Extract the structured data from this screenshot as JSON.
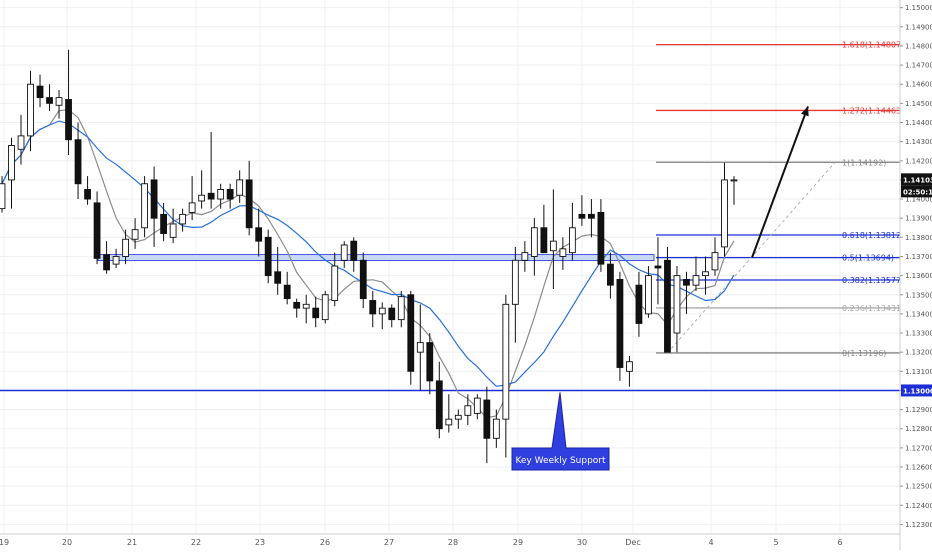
{
  "chart_data": {
    "type": "candlestick",
    "x_ticks": [
      "19",
      "20",
      "21",
      "22",
      "23",
      "26",
      "27",
      "28",
      "29",
      "30",
      "Dec",
      "4",
      "5",
      "6"
    ],
    "y_ticks": [
      "1.12300",
      "1.12400",
      "1.12500",
      "1.12600",
      "1.12700",
      "1.12800",
      "1.12900",
      "1.13000",
      "1.13100",
      "1.13200",
      "1.13300",
      "1.13400",
      "1.13500",
      "1.13600",
      "1.13700",
      "1.13800",
      "1.13900",
      "1.14000",
      "1.14100",
      "1.14200",
      "1.14300",
      "1.14400",
      "1.14500",
      "1.14600",
      "1.14700",
      "1.14800",
      "1.14900",
      "1.15000"
    ],
    "ylim": [
      1.1225,
      1.1504
    ],
    "price_label": "1.14103",
    "countdown_label": "02:50:19",
    "support_label": "1.13000",
    "support_level": 1.13,
    "zone_level": 1.13694,
    "fib_levels": [
      {
        "label": "1.618(1.14807)",
        "value": 1.14807,
        "color": "#e53935"
      },
      {
        "label": "1.272(1.14463)",
        "value": 1.14463,
        "color": "#e53935"
      },
      {
        "label": "1(1.14192)",
        "value": 1.14192,
        "color": "#888888"
      },
      {
        "label": "0.618(1.13812)",
        "value": 1.13812,
        "color": "#1e2fd6"
      },
      {
        "label": "0.5(1.13694)",
        "value": 1.13694,
        "color": "#1e2fd6"
      },
      {
        "label": "0.382(1.13577)",
        "value": 1.13577,
        "color": "#1e2fd6"
      },
      {
        "label": "0.236(1.13431)",
        "value": 1.13431,
        "color": "#aaaaaa"
      },
      {
        "label": "0(1.13196)",
        "value": 1.13196,
        "color": "#888888"
      }
    ],
    "annotation": "Key Weekly Support",
    "candles": [
      {
        "o": 1.1395,
        "h": 1.1412,
        "l": 1.1393,
        "c": 1.1408
      },
      {
        "o": 1.141,
        "h": 1.1432,
        "l": 1.1395,
        "c": 1.1428
      },
      {
        "o": 1.1426,
        "h": 1.1444,
        "l": 1.1418,
        "c": 1.1433
      },
      {
        "o": 1.1433,
        "h": 1.1467,
        "l": 1.1425,
        "c": 1.146
      },
      {
        "o": 1.1459,
        "h": 1.1465,
        "l": 1.1448,
        "c": 1.1453
      },
      {
        "o": 1.1453,
        "h": 1.146,
        "l": 1.1446,
        "c": 1.145
      },
      {
        "o": 1.1449,
        "h": 1.1457,
        "l": 1.1442,
        "c": 1.1453
      },
      {
        "o": 1.1452,
        "h": 1.1478,
        "l": 1.1423,
        "c": 1.1431
      },
      {
        "o": 1.1431,
        "h": 1.144,
        "l": 1.14,
        "c": 1.1408
      },
      {
        "o": 1.1405,
        "h": 1.1412,
        "l": 1.1397,
        "c": 1.14
      },
      {
        "o": 1.1398,
        "h": 1.1404,
        "l": 1.1366,
        "c": 1.1369
      },
      {
        "o": 1.1371,
        "h": 1.1378,
        "l": 1.1361,
        "c": 1.1363
      },
      {
        "o": 1.1366,
        "h": 1.1374,
        "l": 1.1364,
        "c": 1.137
      },
      {
        "o": 1.137,
        "h": 1.1384,
        "l": 1.1366,
        "c": 1.1379
      },
      {
        "o": 1.1379,
        "h": 1.139,
        "l": 1.1374,
        "c": 1.1384
      },
      {
        "o": 1.1385,
        "h": 1.1412,
        "l": 1.138,
        "c": 1.1408
      },
      {
        "o": 1.141,
        "h": 1.1417,
        "l": 1.1375,
        "c": 1.139
      },
      {
        "o": 1.1392,
        "h": 1.1398,
        "l": 1.1378,
        "c": 1.1382
      },
      {
        "o": 1.138,
        "h": 1.1395,
        "l": 1.1377,
        "c": 1.1387
      },
      {
        "o": 1.1387,
        "h": 1.1395,
        "l": 1.1383,
        "c": 1.1392
      },
      {
        "o": 1.1393,
        "h": 1.1412,
        "l": 1.1389,
        "c": 1.1398
      },
      {
        "o": 1.1399,
        "h": 1.1415,
        "l": 1.1395,
        "c": 1.1402
      },
      {
        "o": 1.1403,
        "h": 1.1435,
        "l": 1.1395,
        "c": 1.14
      },
      {
        "o": 1.14,
        "h": 1.1408,
        "l": 1.1395,
        "c": 1.1405
      },
      {
        "o": 1.1405,
        "h": 1.1408,
        "l": 1.1395,
        "c": 1.14
      },
      {
        "o": 1.1402,
        "h": 1.1415,
        "l": 1.1398,
        "c": 1.141
      },
      {
        "o": 1.141,
        "h": 1.142,
        "l": 1.1381,
        "c": 1.1385
      },
      {
        "o": 1.1385,
        "h": 1.1395,
        "l": 1.137,
        "c": 1.1378
      },
      {
        "o": 1.138,
        "h": 1.1384,
        "l": 1.1356,
        "c": 1.136
      },
      {
        "o": 1.1362,
        "h": 1.1375,
        "l": 1.135,
        "c": 1.1356
      },
      {
        "o": 1.1355,
        "h": 1.1362,
        "l": 1.1345,
        "c": 1.1348
      },
      {
        "o": 1.1346,
        "h": 1.1348,
        "l": 1.1338,
        "c": 1.1343
      },
      {
        "o": 1.1343,
        "h": 1.135,
        "l": 1.1335,
        "c": 1.1345
      },
      {
        "o": 1.1343,
        "h": 1.1349,
        "l": 1.1333,
        "c": 1.1338
      },
      {
        "o": 1.1337,
        "h": 1.1352,
        "l": 1.1335,
        "c": 1.135
      },
      {
        "o": 1.1347,
        "h": 1.1372,
        "l": 1.1344,
        "c": 1.1365
      },
      {
        "o": 1.1368,
        "h": 1.1378,
        "l": 1.1364,
        "c": 1.1376
      },
      {
        "o": 1.1378,
        "h": 1.138,
        "l": 1.1362,
        "c": 1.1368
      },
      {
        "o": 1.1368,
        "h": 1.1372,
        "l": 1.1343,
        "c": 1.1348
      },
      {
        "o": 1.1347,
        "h": 1.1352,
        "l": 1.1333,
        "c": 1.134
      },
      {
        "o": 1.134,
        "h": 1.1346,
        "l": 1.1332,
        "c": 1.1343
      },
      {
        "o": 1.1343,
        "h": 1.1345,
        "l": 1.1333,
        "c": 1.1337
      },
      {
        "o": 1.1337,
        "h": 1.1352,
        "l": 1.1333,
        "c": 1.1349
      },
      {
        "o": 1.135,
        "h": 1.1352,
        "l": 1.1303,
        "c": 1.131
      },
      {
        "o": 1.132,
        "h": 1.1345,
        "l": 1.13,
        "c": 1.1325
      },
      {
        "o": 1.1325,
        "h": 1.133,
        "l": 1.1298,
        "c": 1.1305
      },
      {
        "o": 1.1305,
        "h": 1.1315,
        "l": 1.1275,
        "c": 1.128
      },
      {
        "o": 1.1282,
        "h": 1.1298,
        "l": 1.1278,
        "c": 1.1285
      },
      {
        "o": 1.1285,
        "h": 1.129,
        "l": 1.128,
        "c": 1.1287
      },
      {
        "o": 1.1287,
        "h": 1.1298,
        "l": 1.1282,
        "c": 1.1292
      },
      {
        "o": 1.1288,
        "h": 1.1298,
        "l": 1.1285,
        "c": 1.1296
      },
      {
        "o": 1.1295,
        "h": 1.1302,
        "l": 1.1262,
        "c": 1.1275
      },
      {
        "o": 1.1275,
        "h": 1.129,
        "l": 1.127,
        "c": 1.1285
      },
      {
        "o": 1.1285,
        "h": 1.135,
        "l": 1.1265,
        "c": 1.1345
      },
      {
        "o": 1.1345,
        "h": 1.1375,
        "l": 1.1325,
        "c": 1.1368
      },
      {
        "o": 1.1368,
        "h": 1.1378,
        "l": 1.1362,
        "c": 1.1372
      },
      {
        "o": 1.137,
        "h": 1.139,
        "l": 1.136,
        "c": 1.1385
      },
      {
        "o": 1.1385,
        "h": 1.1397,
        "l": 1.1374,
        "c": 1.1372
      },
      {
        "o": 1.1373,
        "h": 1.1405,
        "l": 1.1353,
        "c": 1.1378
      },
      {
        "o": 1.137,
        "h": 1.138,
        "l": 1.1363,
        "c": 1.1374
      },
      {
        "o": 1.1372,
        "h": 1.1398,
        "l": 1.1368,
        "c": 1.1385
      },
      {
        "o": 1.1392,
        "h": 1.1402,
        "l": 1.1386,
        "c": 1.139
      },
      {
        "o": 1.1392,
        "h": 1.14,
        "l": 1.138,
        "c": 1.139
      },
      {
        "o": 1.1393,
        "h": 1.14,
        "l": 1.1362,
        "c": 1.1366
      },
      {
        "o": 1.1366,
        "h": 1.1372,
        "l": 1.1348,
        "c": 1.1355
      },
      {
        "o": 1.1358,
        "h": 1.1362,
        "l": 1.1305,
        "c": 1.1312
      },
      {
        "o": 1.131,
        "h": 1.1318,
        "l": 1.1302,
        "c": 1.1315
      },
      {
        "o": 1.1355,
        "h": 1.1362,
        "l": 1.1328,
        "c": 1.1335
      },
      {
        "o": 1.134,
        "h": 1.1365,
        "l": 1.1338,
        "c": 1.136
      },
      {
        "o": 1.1365,
        "h": 1.138,
        "l": 1.1345,
        "c": 1.1364
      },
      {
        "o": 1.1368,
        "h": 1.1375,
        "l": 1.132,
        "c": 1.132
      },
      {
        "o": 1.133,
        "h": 1.1365,
        "l": 1.132,
        "c": 1.136
      },
      {
        "o": 1.1358,
        "h": 1.1362,
        "l": 1.134,
        "c": 1.1355
      },
      {
        "o": 1.1355,
        "h": 1.137,
        "l": 1.1352,
        "c": 1.136
      },
      {
        "o": 1.136,
        "h": 1.137,
        "l": 1.135,
        "c": 1.1362
      },
      {
        "o": 1.1363,
        "h": 1.138,
        "l": 1.136,
        "c": 1.1372
      },
      {
        "o": 1.1375,
        "h": 1.1419,
        "l": 1.137,
        "c": 1.141
      },
      {
        "o": 1.141,
        "h": 1.1412,
        "l": 1.1397,
        "c": 1.141
      }
    ]
  }
}
